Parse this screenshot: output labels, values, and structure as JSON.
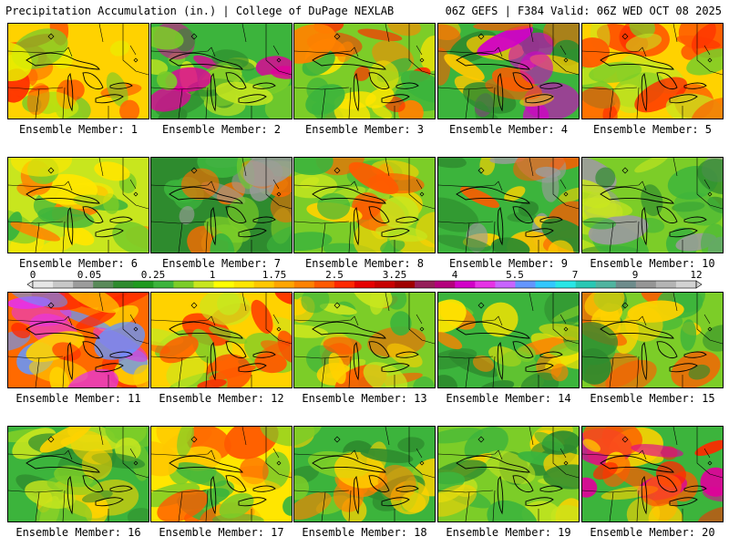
{
  "header": {
    "title": "Precipitation Accumulation (in.) | College of DuPage NEXLAB",
    "run_info": "06Z GEFS | F384 Valid: 06Z WED OCT 08 2025"
  },
  "caption_prefix": "Ensemble Member: ",
  "members": [
    {
      "id": 1,
      "label": "Ensemble Member: 1"
    },
    {
      "id": 2,
      "label": "Ensemble Member: 2"
    },
    {
      "id": 3,
      "label": "Ensemble Member: 3"
    },
    {
      "id": 4,
      "label": "Ensemble Member: 4"
    },
    {
      "id": 5,
      "label": "Ensemble Member: 5"
    },
    {
      "id": 6,
      "label": "Ensemble Member: 6"
    },
    {
      "id": 7,
      "label": "Ensemble Member: 7"
    },
    {
      "id": 8,
      "label": "Ensemble Member: 8"
    },
    {
      "id": 9,
      "label": "Ensemble Member: 9"
    },
    {
      "id": 10,
      "label": "Ensemble Member: 10"
    },
    {
      "id": 11,
      "label": "Ensemble Member: 11"
    },
    {
      "id": 12,
      "label": "Ensemble Member: 12"
    },
    {
      "id": 13,
      "label": "Ensemble Member: 13"
    },
    {
      "id": 14,
      "label": "Ensemble Member: 14"
    },
    {
      "id": 15,
      "label": "Ensemble Member: 15"
    },
    {
      "id": 16,
      "label": "Ensemble Member: 16"
    },
    {
      "id": 17,
      "label": "Ensemble Member: 17"
    },
    {
      "id": 18,
      "label": "Ensemble Member: 18"
    },
    {
      "id": 19,
      "label": "Ensemble Member: 19"
    },
    {
      "id": 20,
      "label": "Ensemble Member: 20"
    }
  ],
  "colorbar": {
    "tick_labels": [
      "0",
      "0.05",
      "0.25",
      "1",
      "1.75",
      "2.5",
      "3.25",
      "4",
      "5.5",
      "7",
      "9",
      "12"
    ],
    "colors": [
      "#e6e6e6",
      "#c8c8c8",
      "#9c9c9c",
      "#5a8a5a",
      "#2e8b2e",
      "#1f9a1f",
      "#3cb43c",
      "#7ccd28",
      "#c8e61e",
      "#ffff00",
      "#ffe600",
      "#ffc800",
      "#ffa500",
      "#ff8200",
      "#ff5a00",
      "#ff2800",
      "#e60000",
      "#c80000",
      "#a00000",
      "#961e5a",
      "#b4007d",
      "#d200c8",
      "#e632e6",
      "#c864ff",
      "#6496ff",
      "#32c8ff",
      "#28e6e6",
      "#28c8b4",
      "#50b4a0",
      "#6e8c8c",
      "#969696",
      "#b4b4b4",
      "#d2d2d2"
    ]
  }
}
